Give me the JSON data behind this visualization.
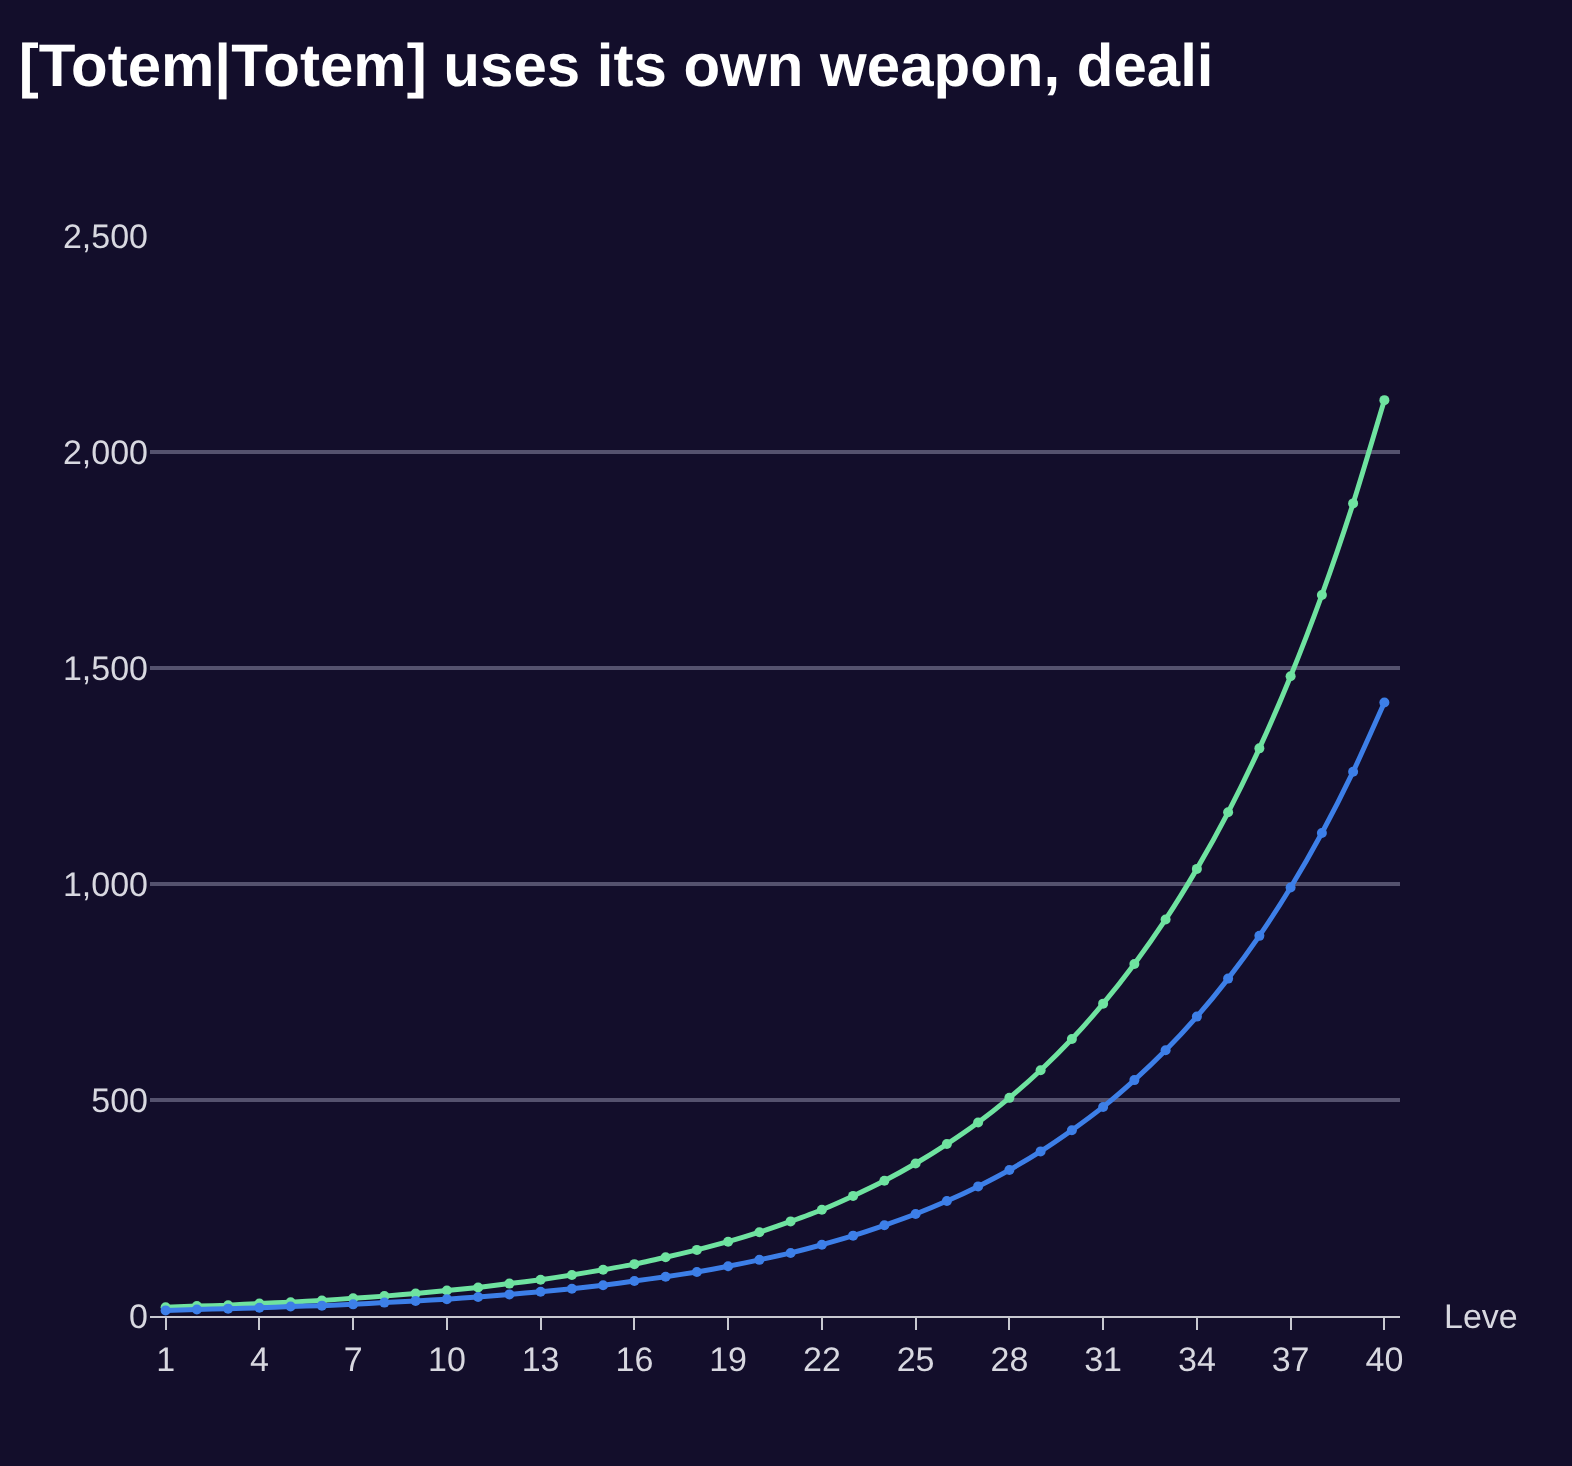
{
  "chart_data": {
    "type": "line",
    "title": "[Totem|Totem] uses its own weapon, deali",
    "xlabel": "Leve",
    "x": [
      1,
      2,
      3,
      4,
      5,
      6,
      7,
      8,
      9,
      10,
      11,
      12,
      13,
      14,
      15,
      16,
      17,
      18,
      19,
      20,
      21,
      22,
      23,
      24,
      25,
      26,
      27,
      28,
      29,
      30,
      31,
      32,
      33,
      34,
      35,
      36,
      37,
      38,
      39,
      40
    ],
    "series": [
      {
        "color": "#6fe3a0",
        "values": [
          20,
          23,
          25,
          29,
          32,
          36,
          41,
          46,
          52,
          59,
          66,
          75,
          84,
          95,
          107,
          120,
          136,
          153,
          172,
          194,
          219,
          246,
          278,
          313,
          353,
          398,
          448,
          505,
          569,
          641,
          723,
          815,
          918,
          1035,
          1166,
          1314,
          1481,
          1669,
          1881,
          2120
        ]
      },
      {
        "color": "#3d7fe8",
        "values": [
          13,
          15,
          17,
          19,
          22,
          24,
          27,
          31,
          35,
          39,
          44,
          50,
          56,
          63,
          71,
          81,
          91,
          102,
          115,
          130,
          146,
          165,
          186,
          210,
          236,
          266,
          300,
          338,
          381,
          430,
          484,
          546,
          615,
          693,
          781,
          880,
          992,
          1118,
          1260,
          1420
        ]
      }
    ],
    "xlim": [
      0.5,
      40.5
    ],
    "xticks": [
      1,
      4,
      7,
      10,
      13,
      16,
      19,
      22,
      25,
      28,
      31,
      34,
      37,
      40
    ],
    "ylim": [
      0,
      2500
    ],
    "yticks": [
      {
        "value": 0,
        "label": "0"
      },
      {
        "value": 500,
        "label": "500"
      },
      {
        "value": 1000,
        "label": "1,000"
      },
      {
        "value": 1500,
        "label": "1,500"
      },
      {
        "value": 2000,
        "label": "2,000"
      },
      {
        "value": 2500,
        "label": "2,500"
      }
    ],
    "grid": "y",
    "marker": "circle",
    "line_style": "solid",
    "legend": false
  }
}
